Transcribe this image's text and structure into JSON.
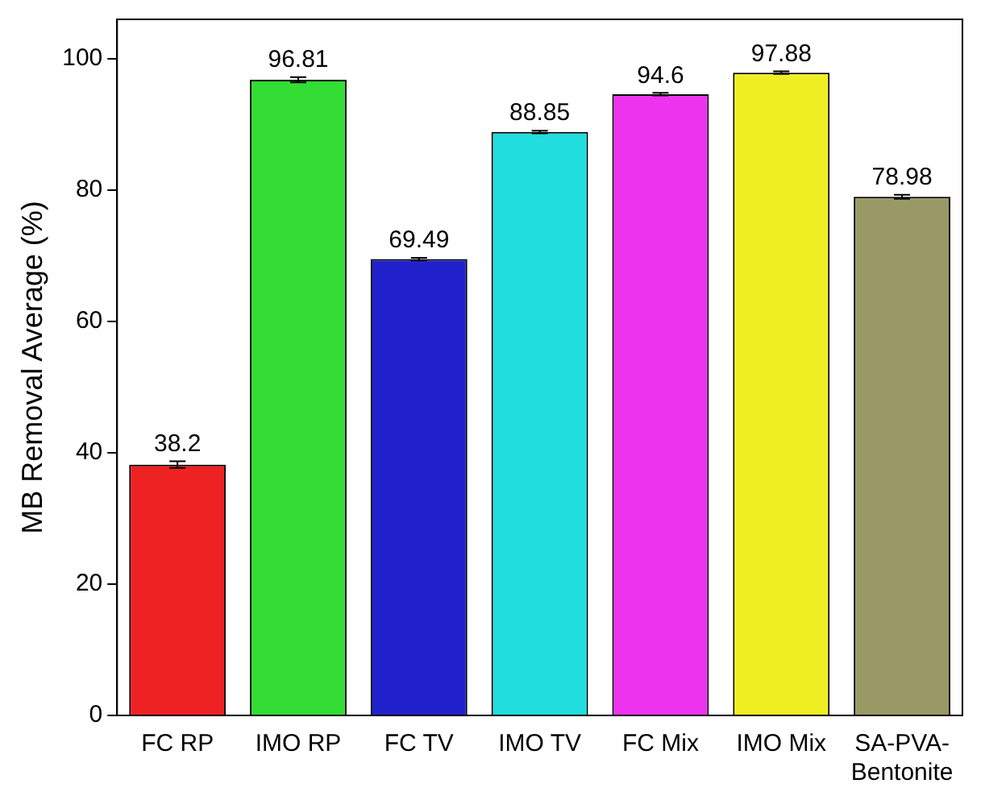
{
  "chart_data": {
    "type": "bar",
    "ylabel": "MB Removal Average (%)",
    "categories": [
      "FC RP",
      "IMO RP",
      "FC TV",
      "IMO TV",
      "FC Mix",
      "IMO Mix",
      "SA-PVA-Bentonite"
    ],
    "values": [
      38.2,
      96.81,
      69.49,
      88.85,
      94.6,
      97.88,
      78.98
    ],
    "errors": [
      0.5,
      0.4,
      0.2,
      0.2,
      0.2,
      0.2,
      0.3
    ],
    "colors": [
      "#ee2222",
      "#33dd33",
      "#2222cc",
      "#22dddd",
      "#ee33ee",
      "#eeee22",
      "#999966"
    ],
    "ylim": [
      0,
      106
    ],
    "yticks": [
      0,
      20,
      40,
      60,
      80,
      100
    ],
    "data_labels": true,
    "grid": false,
    "legend": false
  }
}
